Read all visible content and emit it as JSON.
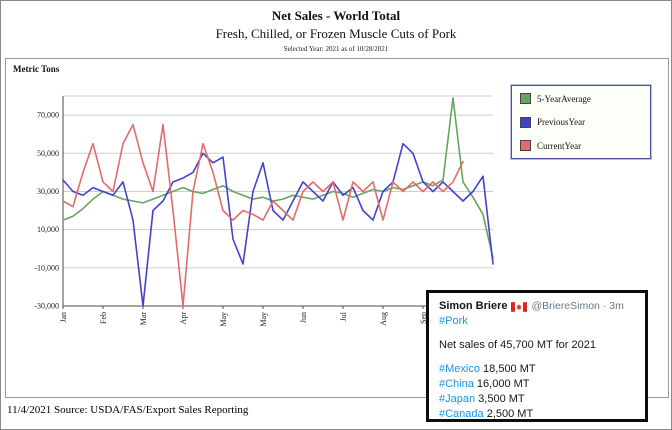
{
  "chart_data": {
    "type": "line",
    "title": "Net Sales - World Total",
    "subtitle": "Fresh, Chilled, or Frozen Muscle Cuts of Pork",
    "as_of_note": "Selected Year: 2021 as of 10/28/2021",
    "ylabel": "Metric Tons",
    "ylim": [
      -30000,
      80000
    ],
    "y_ticks": [
      70000,
      50000,
      30000,
      10000,
      -10000,
      -30000
    ],
    "y_tick_labels": [
      "70,000",
      "50,000",
      "30,000",
      "10,000",
      "-10,000",
      "-30,000"
    ],
    "x_tick_positions": [
      0,
      4,
      8,
      12,
      16,
      20,
      24,
      28,
      32,
      36,
      40
    ],
    "x_tick_labels": [
      "Jan",
      "Feb",
      "Mar",
      "Apr",
      "May",
      "May",
      "Jun",
      "Jul",
      "Aug",
      "Sep",
      "Oct"
    ],
    "n_points": 44,
    "grid": "horizontal",
    "legend_position": "top-right",
    "series": [
      {
        "name": "5-YearAverage",
        "color": "#67a55f",
        "values": [
          15000,
          17000,
          21000,
          26000,
          30000,
          28000,
          26000,
          25000,
          24000,
          26000,
          28000,
          30000,
          32000,
          30000,
          29000,
          31000,
          33000,
          30000,
          28000,
          26000,
          27000,
          25000,
          26000,
          28000,
          27000,
          26000,
          28000,
          30000,
          29000,
          27000,
          29000,
          31000,
          30000,
          32000,
          31000,
          33000,
          35000,
          33000,
          36000,
          79000,
          35000,
          27000,
          18000,
          -5000
        ]
      },
      {
        "name": "PreviousYear",
        "color": "#4242d2",
        "values": [
          36000,
          30000,
          28000,
          32000,
          30000,
          28000,
          35000,
          15000,
          -30000,
          20000,
          25000,
          35000,
          37000,
          40000,
          50000,
          45000,
          48000,
          5000,
          -8000,
          30000,
          45000,
          20000,
          15000,
          25000,
          35000,
          30000,
          25000,
          35000,
          28000,
          32000,
          20000,
          15000,
          30000,
          35000,
          55000,
          50000,
          35000,
          30000,
          35000,
          30000,
          25000,
          30000,
          38000,
          -8000
        ]
      },
      {
        "name": "CurrentYear",
        "color": "#e56a6a",
        "values": [
          25000,
          22000,
          40000,
          55000,
          35000,
          30000,
          55000,
          65000,
          45000,
          30000,
          65000,
          20000,
          -30000,
          30000,
          55000,
          40000,
          20000,
          15000,
          20000,
          18000,
          15000,
          25000,
          20000,
          15000,
          30000,
          35000,
          30000,
          35000,
          15000,
          35000,
          30000,
          35000,
          15000,
          35000,
          30000,
          35000,
          30000,
          35000,
          30000,
          35000,
          45700
        ]
      }
    ]
  },
  "tweet": {
    "author": "Simon Briere",
    "flag_icon": "canada-flag",
    "handle_meta": "@BriereSimon · 3m",
    "hashtag": "#Pork",
    "body": "Net sales of 45,700 MT for 2021",
    "link_color": "#1b95e0",
    "stats": [
      {
        "tag": "#Mexico",
        "value": "18,500 MT"
      },
      {
        "tag": "#China",
        "value": "16,000 MT"
      },
      {
        "tag": "#Japan",
        "value": "3,500 MT"
      },
      {
        "tag": "#Canada",
        "value": "2,500 MT"
      }
    ]
  },
  "footer": {
    "source_line": "11/4/2021 Source: USDA/FAS/Export Sales Reporting"
  }
}
